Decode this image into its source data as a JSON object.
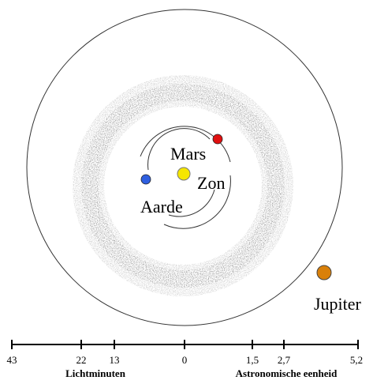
{
  "labels": {
    "sun": "Zon",
    "earth": "Aarde",
    "mars": "Mars",
    "jupiter": "Jupiter"
  },
  "scale": {
    "left_ticks": [
      "43",
      "22",
      "13"
    ],
    "center_tick": "0",
    "right_ticks": [
      "1,5",
      "2,7",
      "5,2"
    ],
    "left_caption": "Lichtminuten",
    "right_caption": "Astronomische eenheid"
  },
  "colors": {
    "sun": "#f5e600",
    "earth": "#2f5fe0",
    "mars": "#e01010",
    "jupiter": "#d9800a",
    "asteroid_belt": "#6f6f6f",
    "orbit_line": "#333333"
  }
}
